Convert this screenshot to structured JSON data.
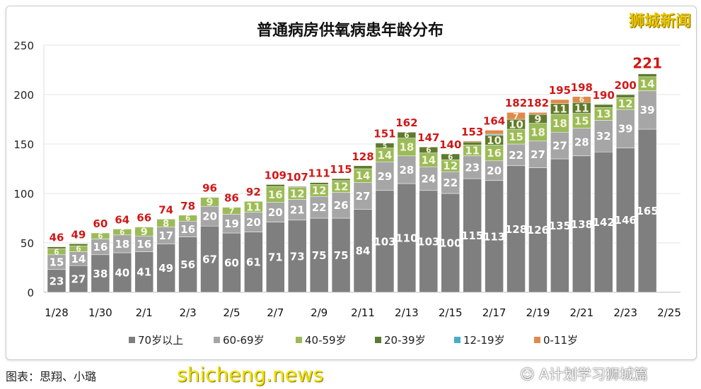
{
  "chart_data": {
    "type": "bar",
    "stacked": true,
    "title": "普通病房供氧病患年龄分布",
    "xlabel": "",
    "ylabel": "",
    "ylim": [
      0,
      250
    ],
    "yticks": [
      0,
      50,
      100,
      150,
      200,
      250
    ],
    "grid": true,
    "legend_position": "bottom",
    "categories": [
      "1/28",
      "1/29",
      "1/30",
      "1/31",
      "2/1",
      "2/2",
      "2/3",
      "2/4",
      "2/5",
      "2/6",
      "2/7",
      "2/8",
      "2/9",
      "2/10",
      "2/11",
      "2/12",
      "2/13",
      "2/14",
      "2/15",
      "2/16",
      "2/17",
      "2/18",
      "2/19",
      "2/20",
      "2/21",
      "2/22",
      "2/23",
      "2/24"
    ],
    "xtick_labels": [
      "1/28",
      "1/30",
      "2/1",
      "2/3",
      "2/5",
      "2/7",
      "2/9",
      "2/11",
      "2/13",
      "2/15",
      "2/17",
      "2/19",
      "2/21",
      "2/23",
      "2/25"
    ],
    "series": [
      {
        "name": "70岁以上",
        "color": "#7f7f7f",
        "values": [
          23,
          27,
          38,
          40,
          41,
          49,
          56,
          67,
          60,
          61,
          71,
          73,
          75,
          75,
          84,
          103,
          110,
          103,
          100,
          115,
          113,
          128,
          126,
          135,
          138,
          142,
          146,
          165
        ]
      },
      {
        "name": "60-69岁",
        "color": "#a6a6a6",
        "values": [
          15,
          14,
          16,
          18,
          16,
          17,
          16,
          20,
          19,
          20,
          20,
          21,
          22,
          26,
          27,
          29,
          28,
          24,
          22,
          23,
          20,
          22,
          27,
          27,
          28,
          32,
          39,
          39
        ]
      },
      {
        "name": "40-59岁",
        "color": "#9bbb59",
        "values": [
          6,
          6,
          6,
          6,
          9,
          8,
          6,
          9,
          7,
          11,
          16,
          12,
          12,
          12,
          14,
          14,
          18,
          14,
          12,
          11,
          16,
          15,
          18,
          18,
          15,
          13,
          12,
          14
        ]
      },
      {
        "name": "20-39岁",
        "color": "#5f7a30",
        "values": [
          2,
          2,
          0,
          0,
          0,
          0,
          0,
          0,
          0,
          0,
          2,
          1,
          2,
          2,
          3,
          5,
          6,
          6,
          6,
          3,
          10,
          10,
          9,
          11,
          11,
          3,
          3,
          3
        ]
      },
      {
        "name": "12-19岁",
        "color": "#4bacc6",
        "values": [
          0,
          0,
          0,
          0,
          0,
          0,
          0,
          0,
          0,
          0,
          0,
          0,
          0,
          0,
          0,
          0,
          0,
          0,
          0,
          0,
          1,
          0,
          0,
          0,
          0,
          0,
          0,
          0
        ]
      },
      {
        "name": "0-11岁",
        "color": "#e0894a",
        "values": [
          0,
          0,
          0,
          0,
          0,
          0,
          0,
          0,
          0,
          0,
          0,
          0,
          0,
          0,
          0,
          0,
          0,
          0,
          0,
          1,
          4,
          7,
          2,
          4,
          6,
          0,
          0,
          0
        ]
      }
    ],
    "totals": [
      46,
      49,
      60,
      64,
      66,
      74,
      78,
      96,
      86,
      92,
      109,
      107,
      111,
      115,
      128,
      151,
      162,
      147,
      140,
      153,
      164,
      182,
      182,
      195,
      198,
      190,
      200,
      221
    ],
    "total_label_color": "#d01818"
  },
  "watermarks": {
    "top_right": "狮城新闻",
    "bottom_left": "shicheng.news",
    "wechat": "A计划学习狮城篇"
  },
  "caption": "图表：思翔、小璐"
}
